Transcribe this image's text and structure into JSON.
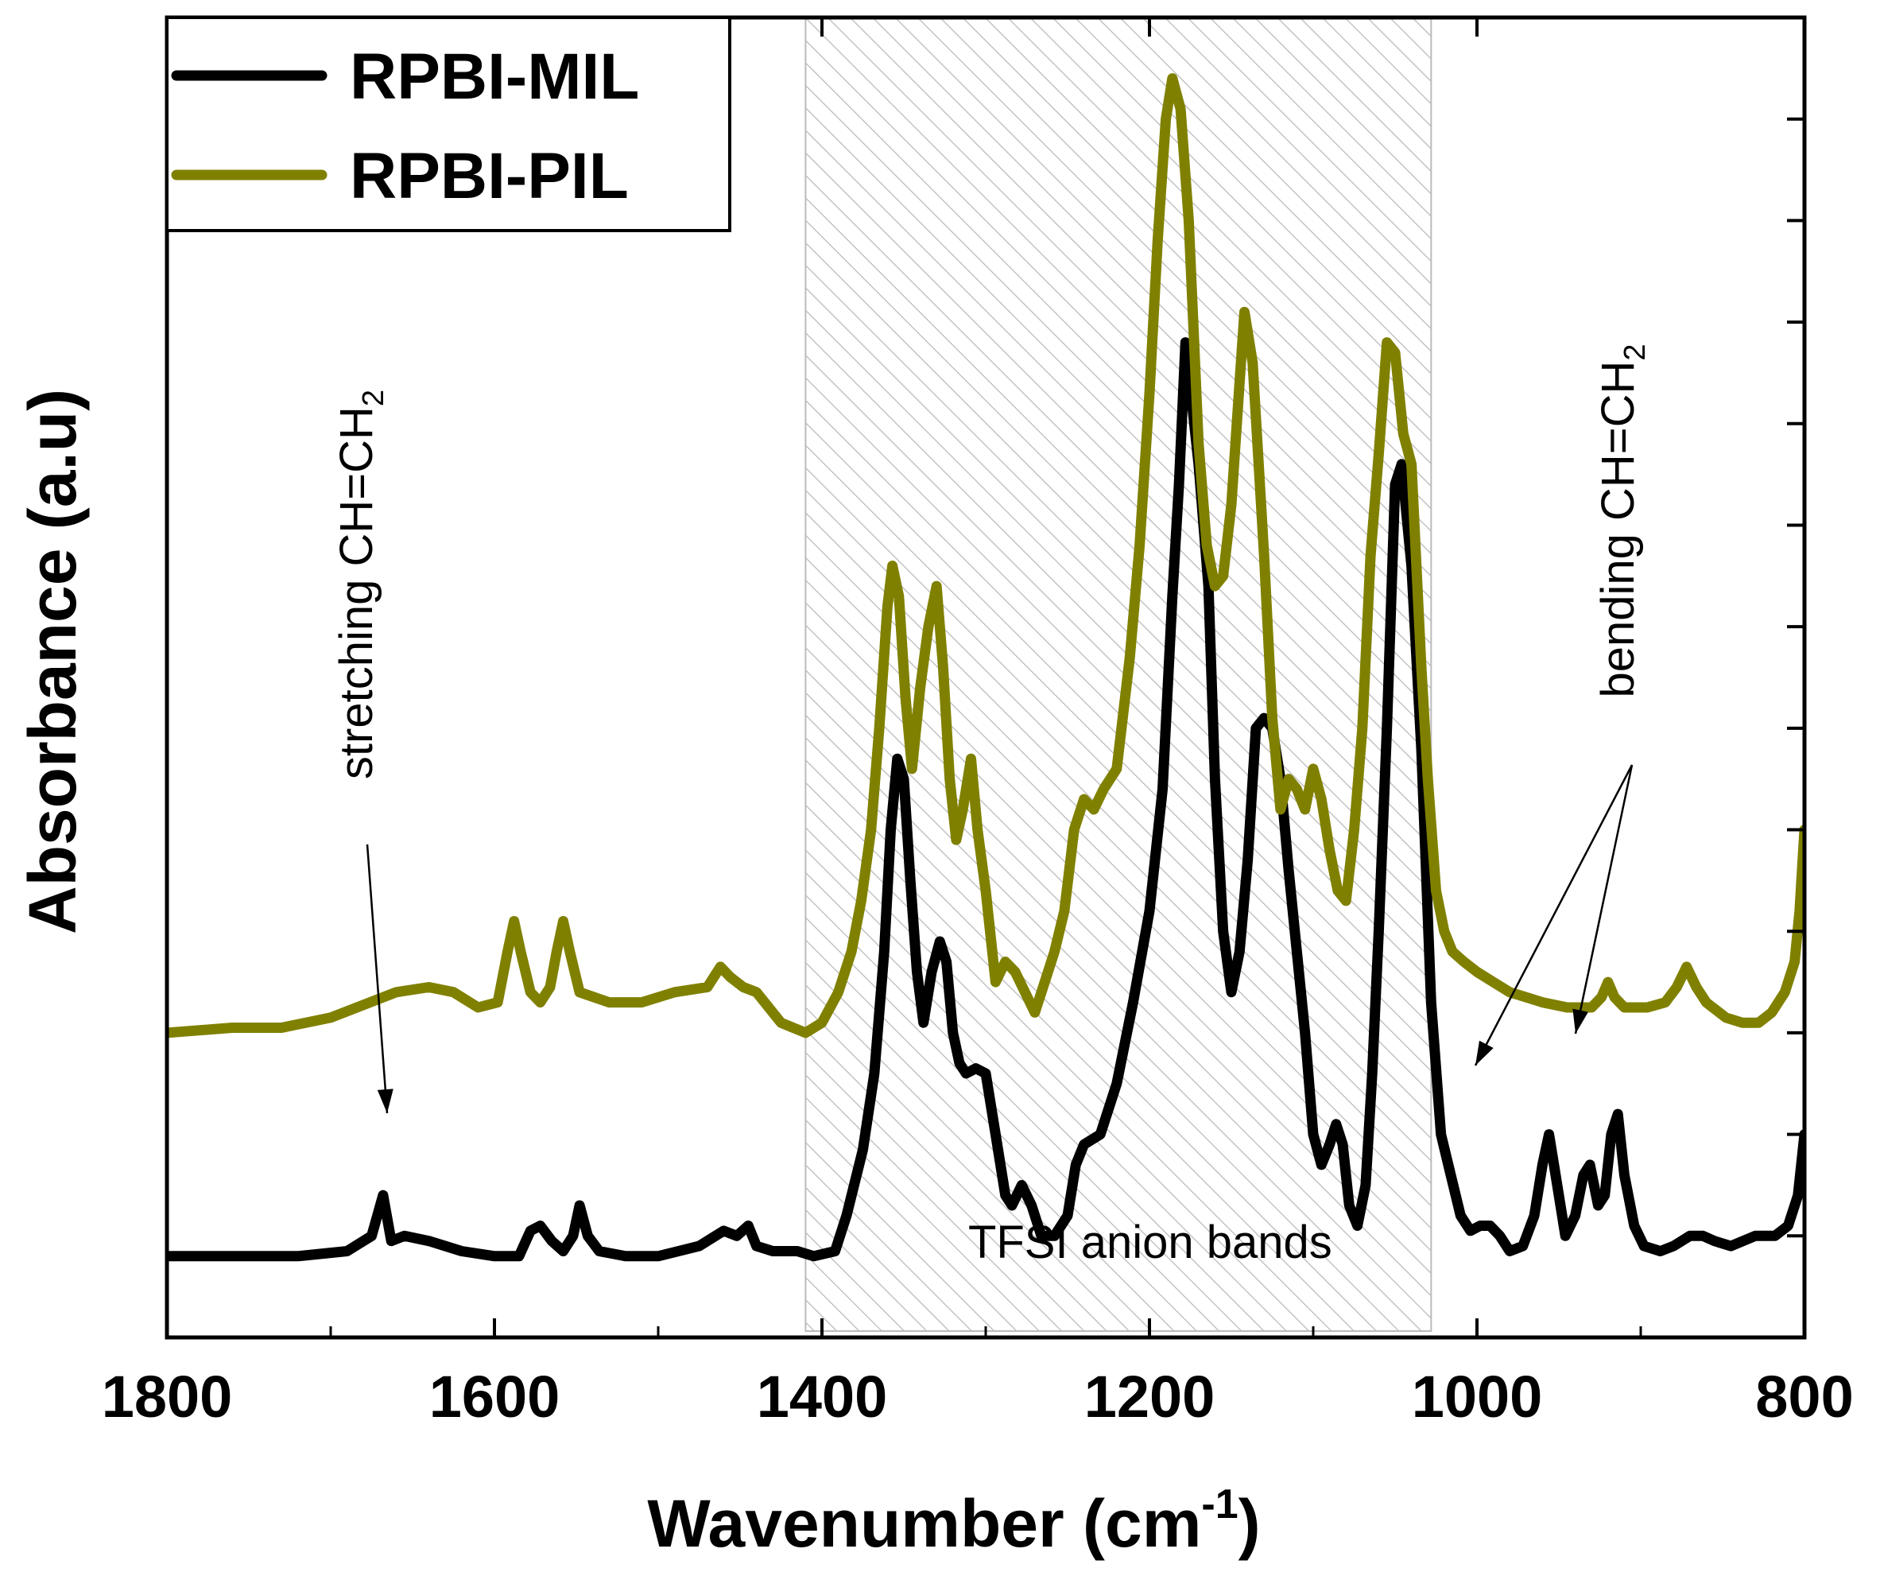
{
  "chart_data": {
    "type": "line",
    "title": "",
    "xlabel": "Wavenumber (cm",
    "xlabel_superscript": "-1",
    "xlabel_close": ")",
    "ylabel": "Absorbance (a.u)",
    "xlim": [
      1800,
      800
    ],
    "x_reversed": true,
    "ylim": [
      0,
      1.3
    ],
    "x_ticks": [
      1800,
      1600,
      1400,
      1200,
      1000,
      800
    ],
    "x_tick_labels": [
      "1800",
      "1600",
      "1400",
      "1200",
      "1000",
      "800"
    ],
    "y_ticks": [
      0.1,
      0.2,
      0.3,
      0.4,
      0.5,
      0.6,
      0.7,
      0.8,
      0.9,
      1.0,
      1.1,
      1.2
    ],
    "y_tick_labels_shown": false,
    "grid": false,
    "legend_position": "top-left",
    "shaded_region": {
      "x_range": [
        1410,
        1028
      ],
      "pattern": "diagonal-hatch",
      "label": "TFSI anion bands"
    },
    "series": [
      {
        "name": "RPBI-MIL",
        "color": "#000000",
        "points": [
          [
            1800,
            0.08
          ],
          [
            1760,
            0.08
          ],
          [
            1720,
            0.08
          ],
          [
            1690,
            0.085
          ],
          [
            1675,
            0.1
          ],
          [
            1668,
            0.14
          ],
          [
            1663,
            0.095
          ],
          [
            1655,
            0.1
          ],
          [
            1640,
            0.095
          ],
          [
            1620,
            0.085
          ],
          [
            1600,
            0.08
          ],
          [
            1585,
            0.08
          ],
          [
            1578,
            0.105
          ],
          [
            1572,
            0.11
          ],
          [
            1565,
            0.095
          ],
          [
            1558,
            0.085
          ],
          [
            1552,
            0.1
          ],
          [
            1548,
            0.13
          ],
          [
            1543,
            0.1
          ],
          [
            1536,
            0.085
          ],
          [
            1520,
            0.08
          ],
          [
            1500,
            0.08
          ],
          [
            1475,
            0.09
          ],
          [
            1460,
            0.105
          ],
          [
            1452,
            0.1
          ],
          [
            1445,
            0.11
          ],
          [
            1440,
            0.09
          ],
          [
            1430,
            0.085
          ],
          [
            1415,
            0.085
          ],
          [
            1405,
            0.08
          ],
          [
            1392,
            0.085
          ],
          [
            1385,
            0.12
          ],
          [
            1375,
            0.185
          ],
          [
            1368,
            0.26
          ],
          [
            1362,
            0.38
          ],
          [
            1358,
            0.5
          ],
          [
            1354,
            0.57
          ],
          [
            1350,
            0.55
          ],
          [
            1346,
            0.45
          ],
          [
            1342,
            0.36
          ],
          [
            1338,
            0.31
          ],
          [
            1333,
            0.36
          ],
          [
            1328,
            0.39
          ],
          [
            1324,
            0.37
          ],
          [
            1320,
            0.3
          ],
          [
            1316,
            0.27
          ],
          [
            1312,
            0.26
          ],
          [
            1306,
            0.265
          ],
          [
            1300,
            0.26
          ],
          [
            1294,
            0.2
          ],
          [
            1288,
            0.14
          ],
          [
            1284,
            0.13
          ],
          [
            1278,
            0.15
          ],
          [
            1272,
            0.13
          ],
          [
            1266,
            0.1
          ],
          [
            1258,
            0.1
          ],
          [
            1250,
            0.12
          ],
          [
            1245,
            0.17
          ],
          [
            1240,
            0.19
          ],
          [
            1230,
            0.2
          ],
          [
            1220,
            0.25
          ],
          [
            1210,
            0.33
          ],
          [
            1200,
            0.42
          ],
          [
            1192,
            0.54
          ],
          [
            1186,
            0.73
          ],
          [
            1182,
            0.84
          ],
          [
            1178,
            0.98
          ],
          [
            1174,
            0.92
          ],
          [
            1170,
            0.86
          ],
          [
            1164,
            0.74
          ],
          [
            1160,
            0.55
          ],
          [
            1155,
            0.4
          ],
          [
            1150,
            0.34
          ],
          [
            1145,
            0.38
          ],
          [
            1140,
            0.47
          ],
          [
            1135,
            0.6
          ],
          [
            1130,
            0.61
          ],
          [
            1125,
            0.6
          ],
          [
            1120,
            0.55
          ],
          [
            1115,
            0.46
          ],
          [
            1110,
            0.38
          ],
          [
            1105,
            0.3
          ],
          [
            1100,
            0.2
          ],
          [
            1095,
            0.17
          ],
          [
            1090,
            0.19
          ],
          [
            1086,
            0.21
          ],
          [
            1082,
            0.19
          ],
          [
            1078,
            0.13
          ],
          [
            1073,
            0.11
          ],
          [
            1068,
            0.15
          ],
          [
            1064,
            0.26
          ],
          [
            1060,
            0.4
          ],
          [
            1055,
            0.6
          ],
          [
            1050,
            0.84
          ],
          [
            1046,
            0.86
          ],
          [
            1040,
            0.76
          ],
          [
            1034,
            0.58
          ],
          [
            1028,
            0.33
          ],
          [
            1022,
            0.2
          ],
          [
            1016,
            0.16
          ],
          [
            1010,
            0.12
          ],
          [
            1004,
            0.105
          ],
          [
            998,
            0.11
          ],
          [
            992,
            0.11
          ],
          [
            986,
            0.1
          ],
          [
            980,
            0.085
          ],
          [
            972,
            0.09
          ],
          [
            965,
            0.12
          ],
          [
            960,
            0.17
          ],
          [
            956,
            0.2
          ],
          [
            952,
            0.16
          ],
          [
            946,
            0.1
          ],
          [
            940,
            0.12
          ],
          [
            935,
            0.16
          ],
          [
            931,
            0.17
          ],
          [
            926,
            0.13
          ],
          [
            922,
            0.14
          ],
          [
            918,
            0.2
          ],
          [
            914,
            0.22
          ],
          [
            910,
            0.16
          ],
          [
            904,
            0.11
          ],
          [
            898,
            0.09
          ],
          [
            888,
            0.085
          ],
          [
            880,
            0.09
          ],
          [
            870,
            0.1
          ],
          [
            862,
            0.1
          ],
          [
            855,
            0.095
          ],
          [
            845,
            0.09
          ],
          [
            830,
            0.1
          ],
          [
            818,
            0.1
          ],
          [
            810,
            0.11
          ],
          [
            804,
            0.14
          ],
          [
            800,
            0.2
          ]
        ]
      },
      {
        "name": "RPBI-PIL",
        "color": "#808000",
        "points": [
          [
            1800,
            0.3
          ],
          [
            1760,
            0.305
          ],
          [
            1730,
            0.305
          ],
          [
            1700,
            0.315
          ],
          [
            1660,
            0.34
          ],
          [
            1640,
            0.345
          ],
          [
            1625,
            0.34
          ],
          [
            1610,
            0.325
          ],
          [
            1598,
            0.33
          ],
          [
            1592,
            0.38
          ],
          [
            1588,
            0.41
          ],
          [
            1584,
            0.38
          ],
          [
            1578,
            0.34
          ],
          [
            1572,
            0.33
          ],
          [
            1566,
            0.345
          ],
          [
            1562,
            0.38
          ],
          [
            1558,
            0.41
          ],
          [
            1554,
            0.38
          ],
          [
            1548,
            0.34
          ],
          [
            1530,
            0.33
          ],
          [
            1510,
            0.33
          ],
          [
            1490,
            0.34
          ],
          [
            1470,
            0.345
          ],
          [
            1462,
            0.365
          ],
          [
            1456,
            0.355
          ],
          [
            1448,
            0.345
          ],
          [
            1440,
            0.34
          ],
          [
            1425,
            0.31
          ],
          [
            1410,
            0.3
          ],
          [
            1400,
            0.31
          ],
          [
            1390,
            0.34
          ],
          [
            1382,
            0.38
          ],
          [
            1376,
            0.43
          ],
          [
            1370,
            0.5
          ],
          [
            1365,
            0.6
          ],
          [
            1360,
            0.72
          ],
          [
            1357,
            0.76
          ],
          [
            1353,
            0.73
          ],
          [
            1349,
            0.63
          ],
          [
            1345,
            0.56
          ],
          [
            1340,
            0.64
          ],
          [
            1335,
            0.7
          ],
          [
            1330,
            0.74
          ],
          [
            1326,
            0.66
          ],
          [
            1322,
            0.55
          ],
          [
            1318,
            0.49
          ],
          [
            1314,
            0.52
          ],
          [
            1309,
            0.57
          ],
          [
            1305,
            0.5
          ],
          [
            1300,
            0.44
          ],
          [
            1294,
            0.35
          ],
          [
            1288,
            0.37
          ],
          [
            1282,
            0.36
          ],
          [
            1276,
            0.34
          ],
          [
            1270,
            0.32
          ],
          [
            1264,
            0.35
          ],
          [
            1258,
            0.38
          ],
          [
            1252,
            0.42
          ],
          [
            1246,
            0.5
          ],
          [
            1240,
            0.53
          ],
          [
            1234,
            0.52
          ],
          [
            1228,
            0.54
          ],
          [
            1220,
            0.56
          ],
          [
            1212,
            0.67
          ],
          [
            1206,
            0.78
          ],
          [
            1200,
            0.93
          ],
          [
            1195,
            1.08
          ],
          [
            1190,
            1.2
          ],
          [
            1186,
            1.24
          ],
          [
            1181,
            1.21
          ],
          [
            1176,
            1.1
          ],
          [
            1170,
            0.88
          ],
          [
            1165,
            0.78
          ],
          [
            1160,
            0.74
          ],
          [
            1155,
            0.75
          ],
          [
            1150,
            0.82
          ],
          [
            1145,
            0.94
          ],
          [
            1142,
            1.01
          ],
          [
            1137,
            0.96
          ],
          [
            1130,
            0.77
          ],
          [
            1125,
            0.61
          ],
          [
            1120,
            0.52
          ],
          [
            1115,
            0.55
          ],
          [
            1110,
            0.54
          ],
          [
            1105,
            0.52
          ],
          [
            1100,
            0.56
          ],
          [
            1095,
            0.53
          ],
          [
            1090,
            0.48
          ],
          [
            1085,
            0.44
          ],
          [
            1080,
            0.43
          ],
          [
            1075,
            0.5
          ],
          [
            1070,
            0.6
          ],
          [
            1065,
            0.77
          ],
          [
            1060,
            0.87
          ],
          [
            1055,
            0.98
          ],
          [
            1050,
            0.97
          ],
          [
            1045,
            0.89
          ],
          [
            1040,
            0.86
          ],
          [
            1034,
            0.66
          ],
          [
            1030,
            0.55
          ],
          [
            1025,
            0.44
          ],
          [
            1020,
            0.4
          ],
          [
            1015,
            0.38
          ],
          [
            1008,
            0.37
          ],
          [
            1000,
            0.36
          ],
          [
            990,
            0.35
          ],
          [
            980,
            0.34
          ],
          [
            960,
            0.33
          ],
          [
            945,
            0.325
          ],
          [
            930,
            0.325
          ],
          [
            924,
            0.335
          ],
          [
            920,
            0.35
          ],
          [
            916,
            0.335
          ],
          [
            910,
            0.325
          ],
          [
            896,
            0.325
          ],
          [
            885,
            0.33
          ],
          [
            878,
            0.345
          ],
          [
            872,
            0.365
          ],
          [
            866,
            0.345
          ],
          [
            860,
            0.33
          ],
          [
            848,
            0.315
          ],
          [
            838,
            0.31
          ],
          [
            828,
            0.31
          ],
          [
            820,
            0.32
          ],
          [
            812,
            0.34
          ],
          [
            806,
            0.37
          ],
          [
            803,
            0.42
          ],
          [
            800,
            0.5
          ]
        ]
      }
    ],
    "annotations": [
      {
        "id": "stretching",
        "text": "stretching CH=CH",
        "subscript": "2",
        "orientation": "vertical"
      },
      {
        "id": "bending",
        "text": "bending CH=CH",
        "subscript": "2",
        "orientation": "vertical"
      }
    ]
  }
}
